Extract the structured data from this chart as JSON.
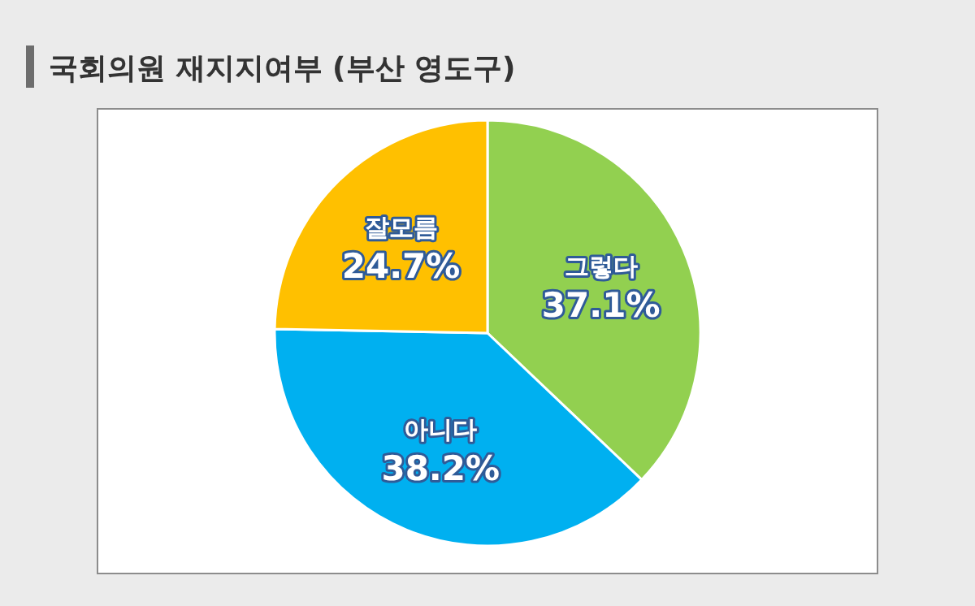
{
  "chart_data": {
    "type": "pie",
    "title": "국회의원 재지지여부 (부산 영도구)",
    "categories": [
      "그렇다",
      "아니다",
      "잘모름"
    ],
    "values": [
      37.1,
      38.2,
      24.7
    ],
    "colors": [
      "#92d050",
      "#00b0f0",
      "#ffc000"
    ],
    "value_labels": [
      "37.1%",
      "38.2%",
      "24.7%"
    ]
  }
}
